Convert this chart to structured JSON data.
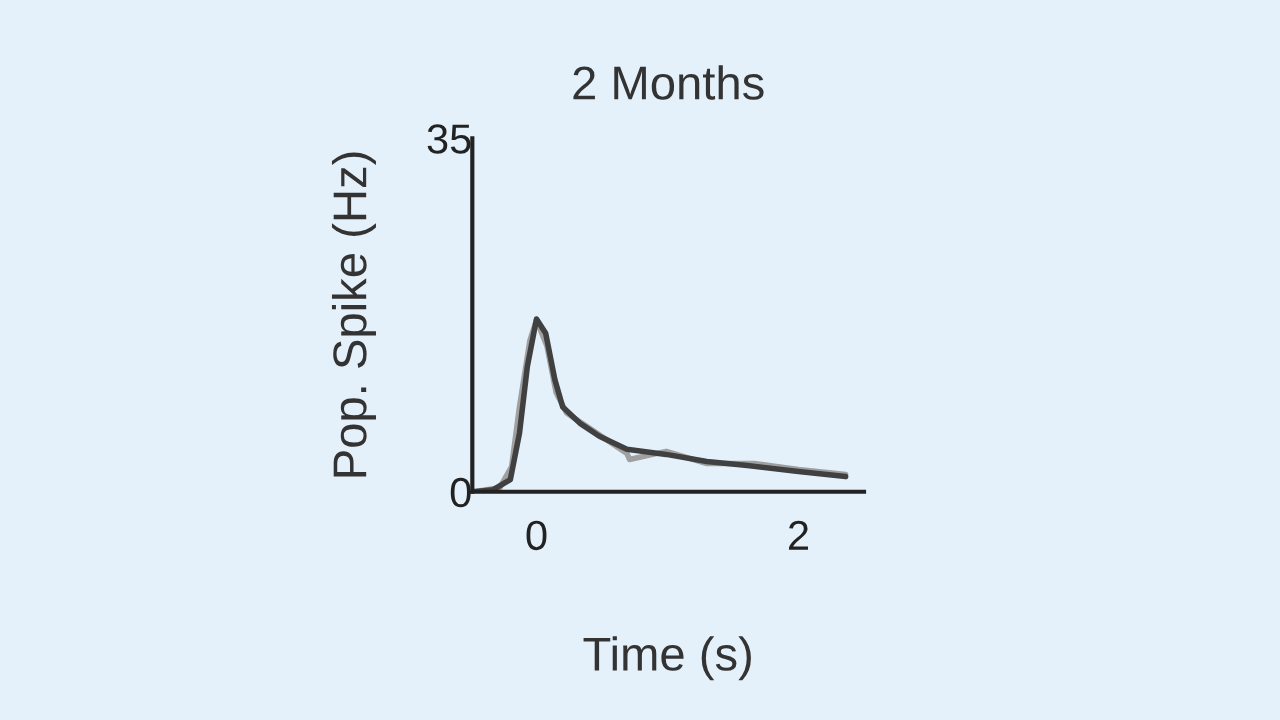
{
  "chart_data": {
    "type": "line",
    "title": "2 Months",
    "xlabel": "Time (s)",
    "ylabel": "Pop. Spike (Hz)",
    "xlim": [
      -0.49,
      2.5
    ],
    "xticks": [
      0,
      2
    ],
    "ylim": [
      0,
      35
    ],
    "yticks": [
      0,
      35
    ],
    "grid": false,
    "legend": false,
    "series": [
      {
        "color": "#a0a0a0",
        "x": [
          -0.48,
          -0.28,
          -0.19,
          -0.13,
          -0.05,
          0,
          0.08,
          0.15,
          0.23,
          0.38,
          0.69,
          0.71,
          0.99,
          1.3,
          1.66,
          2,
          2.36
        ],
        "values": [
          0,
          0.4,
          2.5,
          8.4,
          15.0,
          17.0,
          14.4,
          9.8,
          7.8,
          6.5,
          3.8,
          3.2,
          4.0,
          2.8,
          2.8,
          2.2,
          1.7
        ]
      },
      {
        "color": "#404040",
        "x": [
          -0.48,
          -0.33,
          -0.2,
          -0.13,
          -0.07,
          0,
          0.07,
          0.14,
          0.2,
          0.33,
          0.48,
          0.69,
          0.99,
          1.3,
          1.61,
          2,
          2.36
        ],
        "values": [
          0,
          0.2,
          1.2,
          5.8,
          12.4,
          17.1,
          15.7,
          11.1,
          8.4,
          6.8,
          5.5,
          4.2,
          3.7,
          3.0,
          2.6,
          2.0,
          1.5
        ]
      }
    ]
  }
}
